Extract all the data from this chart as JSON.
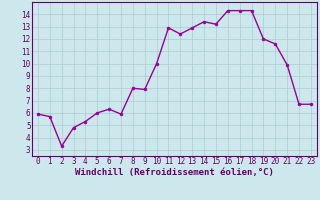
{
  "x": [
    0,
    1,
    2,
    3,
    4,
    5,
    6,
    7,
    8,
    9,
    10,
    11,
    12,
    13,
    14,
    15,
    16,
    17,
    18,
    19,
    20,
    21,
    22,
    23
  ],
  "y": [
    5.9,
    5.7,
    3.3,
    4.8,
    5.3,
    6.0,
    6.3,
    5.9,
    8.0,
    7.9,
    10.0,
    12.9,
    12.4,
    12.9,
    13.4,
    13.2,
    14.3,
    14.3,
    14.3,
    12.0,
    11.6,
    9.9,
    6.7,
    6.7
  ],
  "line_color": "#990099",
  "marker": "o",
  "marker_size": 2,
  "linewidth": 1.0,
  "bg_color": "#cce8ec",
  "grid_color": "#aacccc",
  "xlabel": "Windchill (Refroidissement éolien,°C)",
  "xlabel_fontsize": 6.5,
  "xlim": [
    -0.5,
    23.5
  ],
  "ylim": [
    2.5,
    15.0
  ],
  "yticks": [
    3,
    4,
    5,
    6,
    7,
    8,
    9,
    10,
    11,
    12,
    13,
    14
  ],
  "xticks": [
    0,
    1,
    2,
    3,
    4,
    5,
    6,
    7,
    8,
    9,
    10,
    11,
    12,
    13,
    14,
    15,
    16,
    17,
    18,
    19,
    20,
    21,
    22,
    23
  ],
  "tick_fontsize": 5.5,
  "tick_color": "#660066",
  "xlabel_color": "#660066",
  "spine_color": "#660066"
}
